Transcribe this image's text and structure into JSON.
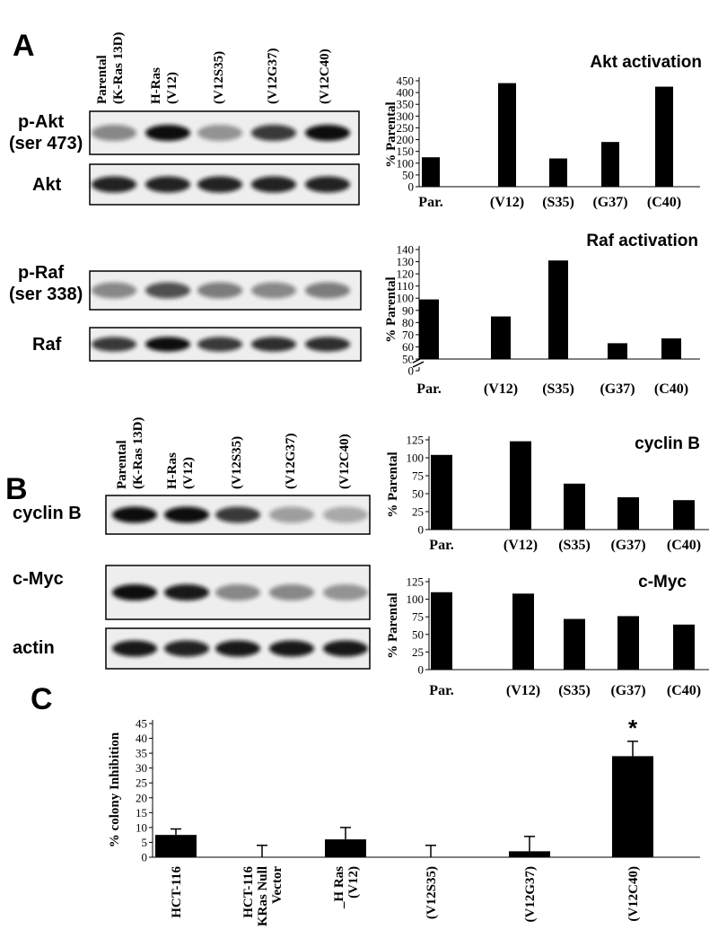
{
  "panels": [
    "A",
    "B",
    "C"
  ],
  "blot_a": {
    "lanes": [
      [
        "Parental",
        "(K-Ras 13D)"
      ],
      [
        "H-Ras",
        "(V12)"
      ],
      [
        "(V12S35)"
      ],
      [
        "(V12G37)"
      ],
      [
        "(V12C40)"
      ]
    ],
    "rows": [
      [
        "p-Akt",
        "(ser 473)"
      ],
      [
        "Akt"
      ],
      [
        "p-Raf",
        "(ser 338)"
      ],
      [
        "Raf"
      ]
    ]
  },
  "blot_b": {
    "lanes": [
      [
        "Parental",
        "(K-Ras 13D)"
      ],
      [
        "H-Ras",
        "(V12)"
      ],
      [
        "(V12S35)"
      ],
      [
        "(V12G37)"
      ],
      [
        "(V12C40)"
      ]
    ],
    "rows": [
      [
        "cyclin B"
      ],
      [
        "c-Myc"
      ],
      [
        "actin"
      ]
    ]
  },
  "chart_data": [
    {
      "type": "bar",
      "title": "Akt activation",
      "y_label": "% Parental",
      "categories": [
        "Par.",
        "(V12)",
        "(S35)",
        "(G37)",
        "(C40)"
      ],
      "values": [
        125,
        440,
        120,
        190,
        425
      ],
      "color": "#000000",
      "ylim": [
        0,
        450
      ],
      "yticks": [
        0,
        50,
        100,
        150,
        200,
        250,
        300,
        350,
        400,
        450
      ]
    },
    {
      "type": "bar",
      "title": "Raf activation",
      "y_label": "% Parental",
      "categories": [
        "Par.",
        "(V12)",
        "(S35)",
        "(G37)",
        "(C40)"
      ],
      "values": [
        99,
        85,
        131,
        63,
        67
      ],
      "color": "#000000",
      "ylim": [
        50,
        140
      ],
      "yticks": [
        50,
        60,
        70,
        80,
        90,
        100,
        110,
        120,
        130,
        140
      ],
      "axis_break_tick": 0
    },
    {
      "type": "bar",
      "title": "cyclin B",
      "y_label": "% Parental",
      "categories": [
        "Par.",
        "(V12)",
        "(S35)",
        "(G37)",
        "(C40)"
      ],
      "values": [
        104,
        123,
        64,
        45,
        41
      ],
      "color": "#000000",
      "ylim": [
        0,
        125
      ],
      "yticks": [
        0,
        25,
        50,
        75,
        100,
        125
      ]
    },
    {
      "type": "bar",
      "title": "c-Myc",
      "y_label": "% Parental",
      "categories": [
        "Par.",
        "(V12)",
        "(S35)",
        "(G37)",
        "(C40)"
      ],
      "values": [
        110,
        108,
        72,
        76,
        64
      ],
      "color": "#000000",
      "ylim": [
        0,
        125
      ],
      "yticks": [
        0,
        25,
        50,
        75,
        100,
        125
      ]
    },
    {
      "type": "bar",
      "y_label": "% colony Inhibition",
      "categories": [
        [
          "HCT-116"
        ],
        [
          "HCT-116",
          "KRas Null",
          "Vector"
        ],
        [
          "_H Ras",
          "(V12)"
        ],
        [
          "(V12S35)"
        ],
        [
          "(V12G37)"
        ],
        [
          "(V12C40)"
        ]
      ],
      "values": [
        7.5,
        0,
        6,
        0,
        2,
        34
      ],
      "errors": [
        2,
        4,
        4,
        4,
        5,
        5
      ],
      "annotation": "*",
      "color": "#000000",
      "ylim": [
        0,
        45
      ],
      "yticks": [
        0,
        5,
        10,
        15,
        20,
        25,
        30,
        35,
        40,
        45
      ]
    }
  ]
}
